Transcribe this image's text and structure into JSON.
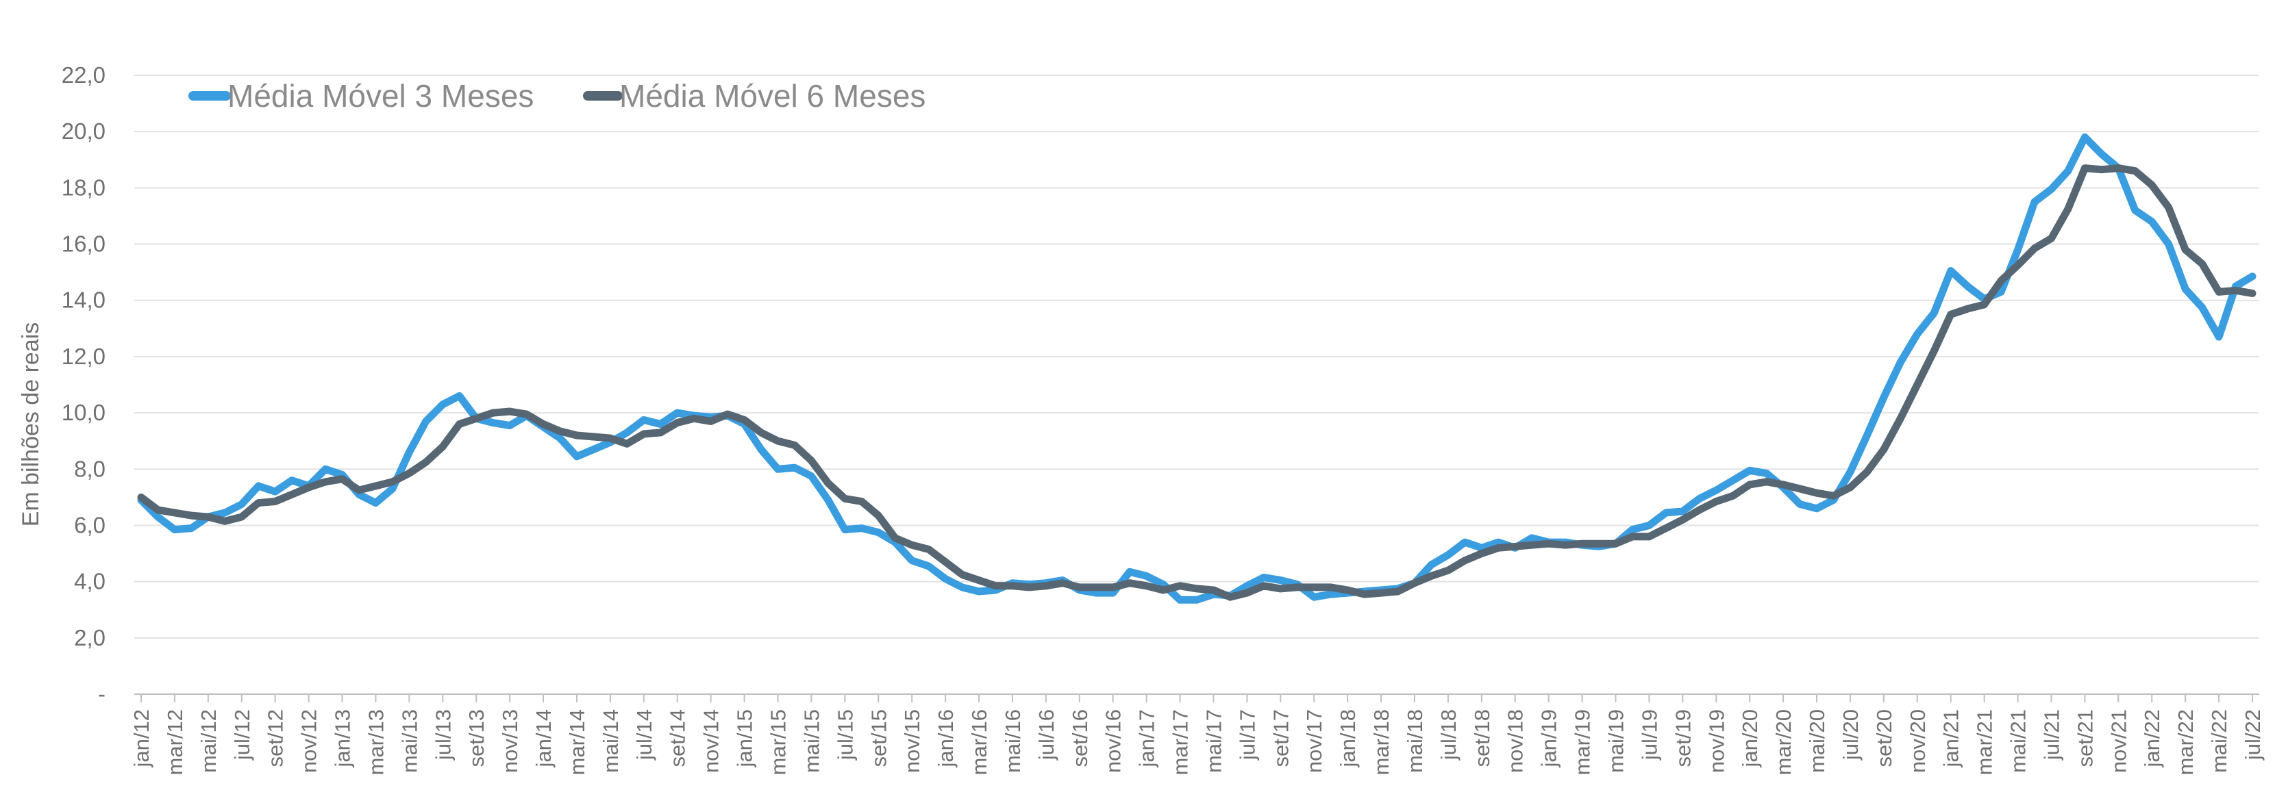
{
  "chart_data": {
    "type": "line",
    "ylabel": "Em bilhões de reais",
    "ylim": [
      0,
      22
    ],
    "yticks": [
      0,
      2,
      4,
      6,
      8,
      10,
      12,
      14,
      16,
      18,
      20,
      22
    ],
    "ytick_labels": [
      "-",
      "2,0",
      "4,0",
      "6,0",
      "8,0",
      "10,0",
      "12,0",
      "14,0",
      "16,0",
      "18,0",
      "20,0",
      "22,0"
    ],
    "grid": true,
    "legend_position": "top-left",
    "x_label_every": 2,
    "x": [
      "jan/12",
      "fev/12",
      "mar/12",
      "abr/12",
      "mai/12",
      "jun/12",
      "jul/12",
      "ago/12",
      "set/12",
      "out/12",
      "nov/12",
      "dez/12",
      "jan/13",
      "fev/13",
      "mar/13",
      "abr/13",
      "mai/13",
      "jun/13",
      "jul/13",
      "ago/13",
      "set/13",
      "out/13",
      "nov/13",
      "dez/13",
      "jan/14",
      "fev/14",
      "mar/14",
      "abr/14",
      "mai/14",
      "jun/14",
      "jul/14",
      "ago/14",
      "set/14",
      "out/14",
      "nov/14",
      "dez/14",
      "jan/15",
      "fev/15",
      "mar/15",
      "abr/15",
      "mai/15",
      "jun/15",
      "jul/15",
      "ago/15",
      "set/15",
      "out/15",
      "nov/15",
      "dez/15",
      "jan/16",
      "fev/16",
      "mar/16",
      "abr/16",
      "mai/16",
      "jun/16",
      "jul/16",
      "ago/16",
      "set/16",
      "out/16",
      "nov/16",
      "dez/16",
      "jan/17",
      "fev/17",
      "mar/17",
      "abr/17",
      "mai/17",
      "jun/17",
      "jul/17",
      "ago/17",
      "set/17",
      "out/17",
      "nov/17",
      "dez/17",
      "jan/18",
      "fev/18",
      "mar/18",
      "abr/18",
      "mai/18",
      "jun/18",
      "jul/18",
      "ago/18",
      "set/18",
      "out/18",
      "nov/18",
      "dez/18",
      "jan/19",
      "fev/19",
      "mar/19",
      "abr/19",
      "mai/19",
      "jun/19",
      "jul/19",
      "ago/19",
      "set/19",
      "out/19",
      "nov/19",
      "dez/19",
      "jan/20",
      "fev/20",
      "mar/20",
      "abr/20",
      "mai/20",
      "jun/20",
      "jul/20",
      "ago/20",
      "set/20",
      "out/20",
      "nov/20",
      "dez/20",
      "jan/21",
      "fev/21",
      "mar/21",
      "abr/21",
      "mai/21",
      "jun/21",
      "jul/21",
      "ago/21",
      "set/21",
      "out/21",
      "nov/21",
      "dez/21",
      "jan/22",
      "fev/22",
      "mar/22",
      "abr/22",
      "mai/22",
      "jun/22",
      "jul/22"
    ],
    "series": [
      {
        "name": "Média Móvel 3 Meses",
        "color": "#3a9de0",
        "values": [
          6.9,
          6.3,
          5.85,
          5.9,
          6.3,
          6.45,
          6.75,
          7.4,
          7.2,
          7.6,
          7.4,
          8.0,
          7.8,
          7.1,
          6.8,
          7.3,
          8.6,
          9.7,
          10.3,
          10.6,
          9.8,
          9.65,
          9.55,
          9.9,
          9.5,
          9.1,
          8.45,
          8.7,
          8.95,
          9.3,
          9.75,
          9.6,
          10.0,
          9.9,
          9.85,
          9.9,
          9.6,
          8.7,
          8.0,
          8.05,
          7.75,
          6.9,
          5.85,
          5.9,
          5.75,
          5.4,
          4.75,
          4.55,
          4.1,
          3.8,
          3.65,
          3.7,
          3.95,
          3.9,
          3.95,
          4.05,
          3.7,
          3.6,
          3.6,
          4.35,
          4.2,
          3.9,
          3.35,
          3.35,
          3.55,
          3.5,
          3.85,
          4.15,
          4.05,
          3.9,
          3.45,
          3.55,
          3.6,
          3.65,
          3.7,
          3.75,
          3.95,
          4.6,
          4.95,
          5.4,
          5.2,
          5.4,
          5.2,
          5.55,
          5.4,
          5.4,
          5.3,
          5.25,
          5.35,
          5.85,
          6.0,
          6.45,
          6.5,
          6.95,
          7.25,
          7.6,
          7.95,
          7.85,
          7.35,
          6.75,
          6.6,
          6.9,
          7.9,
          9.2,
          10.55,
          11.8,
          12.8,
          13.55,
          15.05,
          14.5,
          14.05,
          14.3,
          15.8,
          17.5,
          17.95,
          18.6,
          19.8,
          19.2,
          18.7,
          17.2,
          16.8,
          16.0,
          14.4,
          13.75,
          12.7,
          14.5,
          14.85
        ]
      },
      {
        "name": "Média Móvel 6 Meses",
        "color": "#566673",
        "values": [
          7.0,
          6.55,
          6.45,
          6.35,
          6.3,
          6.15,
          6.3,
          6.8,
          6.85,
          7.1,
          7.35,
          7.55,
          7.65,
          7.25,
          7.4,
          7.55,
          7.85,
          8.25,
          8.8,
          9.6,
          9.8,
          10.0,
          10.05,
          9.95,
          9.6,
          9.35,
          9.2,
          9.15,
          9.1,
          8.9,
          9.25,
          9.3,
          9.65,
          9.8,
          9.7,
          9.95,
          9.75,
          9.3,
          9.0,
          8.85,
          8.3,
          7.5,
          6.95,
          6.85,
          6.35,
          5.55,
          5.3,
          5.15,
          4.7,
          4.25,
          4.05,
          3.85,
          3.85,
          3.8,
          3.85,
          3.95,
          3.8,
          3.8,
          3.8,
          3.95,
          3.85,
          3.7,
          3.85,
          3.75,
          3.7,
          3.45,
          3.6,
          3.85,
          3.75,
          3.8,
          3.8,
          3.8,
          3.7,
          3.55,
          3.6,
          3.65,
          3.95,
          4.2,
          4.4,
          4.75,
          5.0,
          5.2,
          5.25,
          5.3,
          5.35,
          5.3,
          5.35,
          5.35,
          5.35,
          5.6,
          5.6,
          5.9,
          6.2,
          6.55,
          6.85,
          7.05,
          7.45,
          7.55,
          7.45,
          7.3,
          7.15,
          7.05,
          7.35,
          7.9,
          8.7,
          9.8,
          11.0,
          12.2,
          13.5,
          13.7,
          13.85,
          14.7,
          15.25,
          15.85,
          16.2,
          17.25,
          18.7,
          18.65,
          18.7,
          18.6,
          18.1,
          17.3,
          15.8,
          15.3,
          14.3,
          14.35,
          14.25
        ]
      }
    ]
  }
}
